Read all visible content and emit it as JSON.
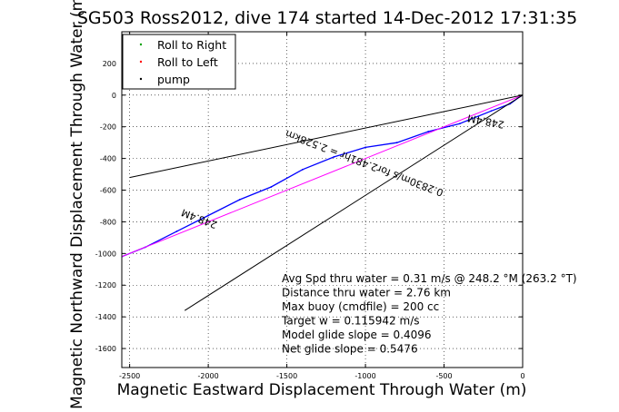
{
  "chart_data": {
    "type": "line",
    "title": "SG503 Ross2012, dive 174 started 14-Dec-2012 17:31:35",
    "xlabel": "Magnetic Eastward Displacement Through Water (m)",
    "ylabel": "Magnetic Northward Displacement Through Water (m)",
    "xlim": [
      -2550,
      0
    ],
    "ylim": [
      -1720,
      400
    ],
    "xticks": [
      -2500,
      -2000,
      -1500,
      -1000,
      -500,
      0
    ],
    "yticks": [
      -1600,
      -1400,
      -1200,
      -1000,
      -800,
      -600,
      -400,
      -200,
      0,
      200
    ],
    "grid": true,
    "legend_position": "top-left",
    "legend": [
      {
        "label": "Roll to Right",
        "color": "#00a000",
        "marker": "dot"
      },
      {
        "label": "Roll to Left",
        "color": "#ff0000",
        "marker": "dot"
      },
      {
        "label": "pump",
        "color": "#000000",
        "marker": "dot"
      }
    ],
    "series": [
      {
        "style": "track",
        "color": "#0000ff",
        "x": [
          0,
          -20,
          -80,
          -200,
          -400,
          -600,
          -800,
          -1000,
          -1200,
          -1400,
          -1600,
          -1800,
          -2000,
          -2200,
          -2400,
          -2550
        ],
        "y": [
          0,
          -12,
          -55,
          -100,
          -180,
          -230,
          -300,
          -330,
          -390,
          -470,
          -580,
          -660,
          -760,
          -860,
          -960,
          -1020
        ]
      },
      {
        "style": "fit",
        "color": "#ff00ff",
        "x": [
          0,
          -2550
        ],
        "y": [
          0,
          -1020
        ]
      },
      {
        "style": "bound",
        "color": "#000000",
        "x": [
          0,
          -2500
        ],
        "y": [
          0,
          -520
        ]
      },
      {
        "style": "bound",
        "color": "#000000",
        "x": [
          0,
          -2150
        ],
        "y": [
          0,
          -1360
        ]
      }
    ],
    "annotations": [
      {
        "text": "248.4M",
        "x": -230,
        "y": -145,
        "rotation": 191
      },
      {
        "text": "0.2830m/s for2.481hr = 2.528km",
        "x": -1000,
        "y": -410,
        "rotation": 201
      },
      {
        "text": "248.4M",
        "x": -2050,
        "y": -760,
        "rotation": 201
      }
    ],
    "stats": [
      "Avg Spd thru water =  0.31 m/s @ 248.2   °M (263.2 °T)",
      "Distance thru water =  2.76 km",
      "Max buoy (cmdfile) = 200 cc",
      "Target w = 0.115942 m/s",
      "Model glide slope = 0.4096",
      "Net glide slope = 0.5476"
    ]
  }
}
